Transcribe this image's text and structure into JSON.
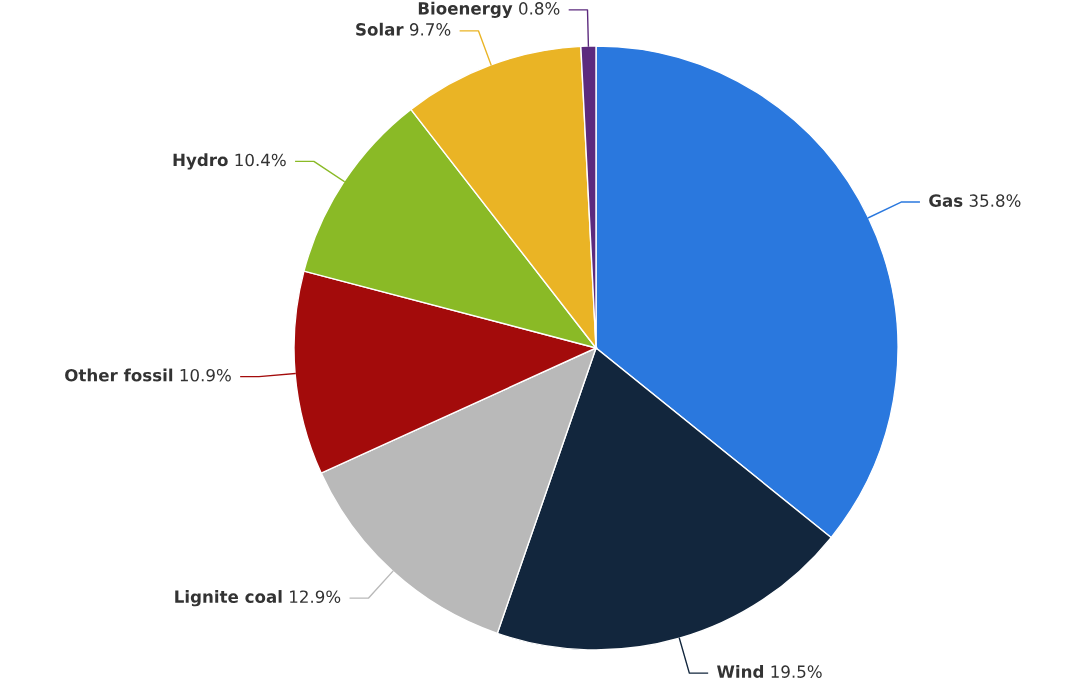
{
  "chart_data": {
    "type": "pie",
    "categories": [
      "Gas",
      "Wind",
      "Lignite coal",
      "Other fossil",
      "Hydro",
      "Solar",
      "Bioenergy"
    ],
    "values": [
      35.8,
      19.5,
      12.9,
      10.9,
      10.4,
      9.7,
      0.8
    ],
    "value_labels": [
      "35.8%",
      "19.5%",
      "12.9%",
      "10.9%",
      "10.4%",
      "9.7%",
      "0.8%"
    ],
    "colors": [
      "#2a78de",
      "#12263d",
      "#b9b9b9",
      "#a30b0b",
      "#8aba26",
      "#eab425",
      "#5c2a7e"
    ],
    "legend": false
  }
}
